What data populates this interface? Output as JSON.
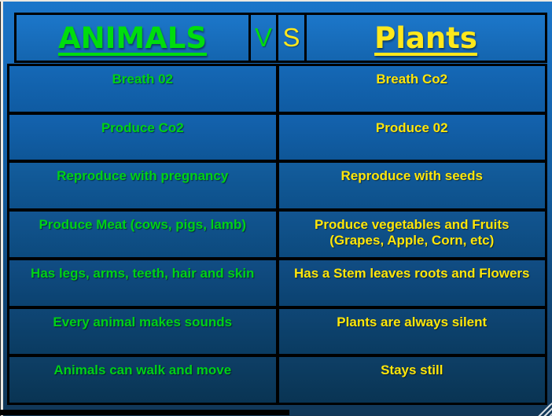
{
  "slide": {
    "header": {
      "animals_label": "ANIMALS",
      "vs_v": "V",
      "vs_s": "S",
      "plants_label": "Plants"
    },
    "rows": [
      {
        "left": "Breath 02",
        "right": "Breath Co2"
      },
      {
        "left": "Produce Co2",
        "right": "Produce 02"
      },
      {
        "left": "Reproduce with pregnancy",
        "right": "Reproduce with seeds"
      },
      {
        "left": "Produce Meat (cows, pigs, lamb)",
        "right": "Produce vegetables and Fruits\n(Grapes, Apple, Corn, etc)"
      },
      {
        "left": "Has legs, arms, teeth, hair and skin",
        "right": "Has a Stem leaves roots and Flowers"
      },
      {
        "left": "Every animal makes sounds",
        "right": "Plants are always silent"
      },
      {
        "left": "Animals can walk and move",
        "right": "Stays still"
      }
    ],
    "colors": {
      "animals_text": "#00d117",
      "plants_text": "#ffe60a",
      "table_border": "#000000",
      "background_top": "#1b76ca",
      "background_bottom": "#113758"
    },
    "icons": {
      "resize_grip_icon": "diagonal-stripes"
    }
  }
}
